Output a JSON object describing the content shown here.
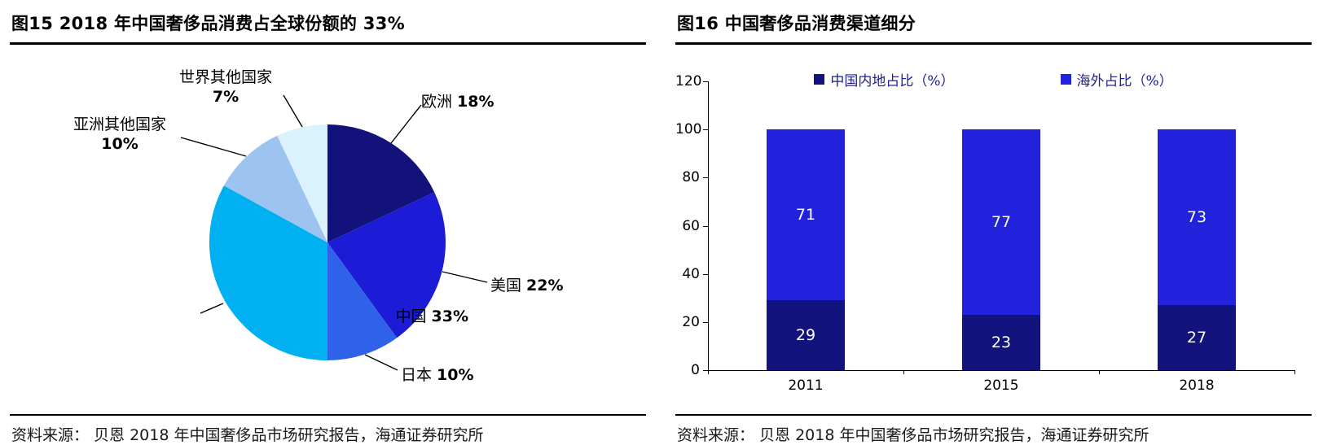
{
  "panels": {
    "fig15": {
      "source": "资料来源： 贝恩 2018 年中国奢侈品市场研究报告，海通证券研究所"
    },
    "fig16": {
      "source": "资料来源： 贝恩 2018 年中国奢侈品市场研究报告，海通证券研究所"
    }
  },
  "chart_data": [
    {
      "type": "pie",
      "title": "图15 2018 年中国奢侈品消费占全球份额的 33%",
      "start_angle_deg": 0,
      "direction": "clockwise",
      "slices": [
        {
          "label": "欧洲",
          "value": 18,
          "pct_label": "18%",
          "color": "#12127A",
          "two_line": false
        },
        {
          "label": "美国",
          "value": 22,
          "pct_label": "22%",
          "color": "#1C1CD6",
          "two_line": false
        },
        {
          "label": "日本",
          "value": 10,
          "pct_label": "10%",
          "color": "#2F62E8",
          "two_line": false
        },
        {
          "label": "中国",
          "value": 33,
          "pct_label": "33%",
          "color": "#00B0F0",
          "two_line": false
        },
        {
          "label": "亚洲其他国家",
          "value": 10,
          "pct_label": "10%",
          "color": "#9DC3F0",
          "two_line": true
        },
        {
          "label": "世界其他国家",
          "value": 7,
          "pct_label": "7%",
          "color": "#D9F2FB",
          "two_line": true
        }
      ]
    },
    {
      "type": "bar",
      "stacked": true,
      "title": "图16 中国奢侈品消费渠道细分",
      "categories": [
        "2011",
        "2015",
        "2018"
      ],
      "series": [
        {
          "name": "中国内地占比（%）",
          "color": "#13137E",
          "values": [
            29,
            23,
            27
          ]
        },
        {
          "name": "海外占比（%）",
          "color": "#2222DC",
          "values": [
            71,
            77,
            73
          ]
        }
      ],
      "ylim": [
        0,
        120
      ],
      "yticks": [
        0,
        20,
        40,
        60,
        80,
        100,
        120
      ],
      "legend_position": "top",
      "grid": false
    }
  ]
}
